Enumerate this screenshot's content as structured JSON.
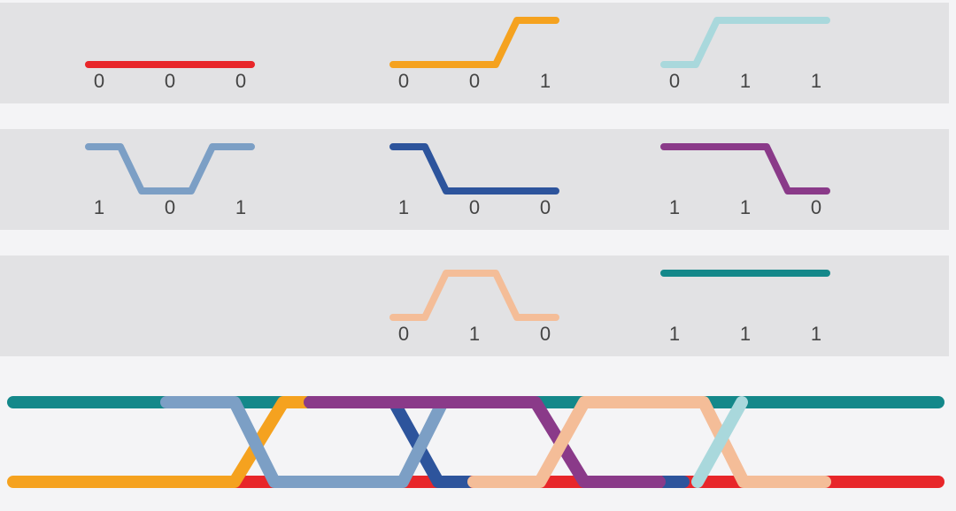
{
  "patterns": [
    {
      "row": 0,
      "col": 1,
      "bits": [
        0,
        0,
        0
      ],
      "color": "#e8262a"
    },
    {
      "row": 0,
      "col": 2,
      "bits": [
        0,
        0,
        1
      ],
      "color": "#f5a21f"
    },
    {
      "row": 0,
      "col": 3,
      "bits": [
        0,
        1,
        1
      ],
      "color": "#a9d8dc"
    },
    {
      "row": 1,
      "col": 1,
      "bits": [
        1,
        0,
        1
      ],
      "color": "#7c9fc5"
    },
    {
      "row": 1,
      "col": 2,
      "bits": [
        1,
        0,
        0
      ],
      "color": "#2d549c"
    },
    {
      "row": 1,
      "col": 3,
      "bits": [
        1,
        1,
        0
      ],
      "color": "#8a3a89"
    },
    {
      "row": 2,
      "col": 2,
      "bits": [
        0,
        1,
        0
      ],
      "color": "#f4bd98"
    },
    {
      "row": 2,
      "col": 3,
      "bits": [
        1,
        1,
        1
      ],
      "color": "#14888a"
    }
  ]
}
